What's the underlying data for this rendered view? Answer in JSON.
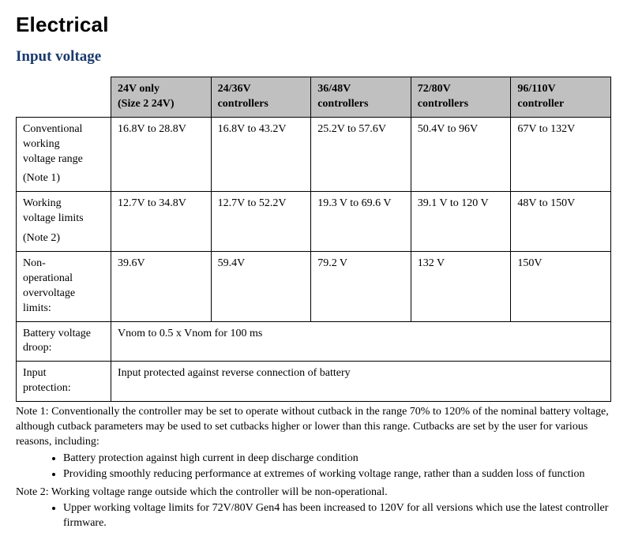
{
  "title": "Electrical",
  "subtitle": "Input voltage",
  "subtitle_color": "#1b3a6b",
  "table": {
    "header_bg": "#c0c0c0",
    "columns": [
      {
        "line1": "24V only",
        "line2": "(Size 2 24V)"
      },
      {
        "line1": "24/36V",
        "line2": "controllers"
      },
      {
        "line1": "36/48V",
        "line2": "controllers"
      },
      {
        "line1": "72/80V",
        "line2": "controllers"
      },
      {
        "line1": "96/110V",
        "line2": "controller"
      }
    ],
    "rows": [
      {
        "label_lines": [
          "Conventional",
          "working",
          "voltage range"
        ],
        "label_sub": "(Note 1)",
        "cells": [
          "16.8V to 28.8V",
          "16.8V to 43.2V",
          "25.2V to 57.6V",
          "50.4V to 96V",
          "67V to 132V"
        ]
      },
      {
        "label_lines": [
          "Working",
          "voltage limits"
        ],
        "label_sub": "(Note 2)",
        "cells": [
          "12.7V to 34.8V",
          "12.7V to 52.2V",
          "19.3 V to 69.6 V",
          "39.1 V to 120 V",
          "48V to 150V"
        ]
      },
      {
        "label_lines": [
          "Non-",
          "operational",
          "overvoltage",
          "limits:"
        ],
        "label_sub": "",
        "cells": [
          "39.6V",
          "59.4V",
          "79.2 V",
          "132 V",
          "150V"
        ]
      }
    ],
    "spanning_rows": [
      {
        "label_lines": [
          "Battery voltage",
          "droop:"
        ],
        "value": "Vnom to 0.5 x Vnom for 100 ms"
      },
      {
        "label_lines": [
          "Input",
          "protection:"
        ],
        "value": "Input protected against reverse connection of battery"
      }
    ]
  },
  "notes": {
    "note1_intro": "Note 1: Conventionally the controller may be set to operate without cutback in the range 70% to 120% of the nominal battery voltage, although cutback parameters may be used to set cutbacks higher or lower than this range. Cutbacks are set by the user for various reasons, including:",
    "note1_bullets": [
      "Battery protection against high current in deep discharge condition",
      "Providing smoothly reducing performance at extremes of working voltage range, rather than a sudden loss of function"
    ],
    "note2_intro": "Note 2: Working voltage range outside which the controller will be non-operational.",
    "note2_bullets": [
      "Upper working voltage limits for 72V/80V Gen4 has been increased to 120V for all versions which use the latest controller firmware."
    ]
  }
}
